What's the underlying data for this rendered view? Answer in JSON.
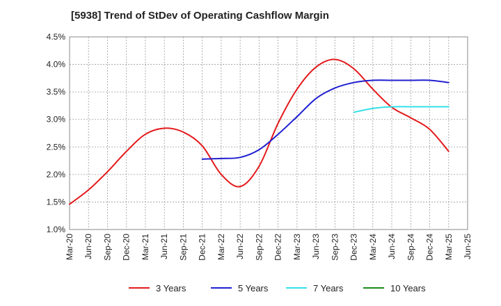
{
  "chart_data": {
    "type": "line",
    "title": "[5938]  Trend of StDev of Operating Cashflow Margin",
    "xlabel": "",
    "ylabel": "",
    "x_ticks": [
      "Mar-20",
      "Jun-20",
      "Sep-20",
      "Dec-20",
      "Mar-21",
      "Jun-21",
      "Sep-21",
      "Dec-21",
      "Mar-22",
      "Jun-22",
      "Sep-22",
      "Dec-22",
      "Mar-23",
      "Jun-23",
      "Sep-23",
      "Dec-23",
      "Mar-24",
      "Jun-24",
      "Sep-24",
      "Dec-24",
      "Mar-25",
      "Jun-25"
    ],
    "y_ticks": [
      "1.0%",
      "1.5%",
      "2.0%",
      "2.5%",
      "3.0%",
      "3.5%",
      "4.0%",
      "4.5%"
    ],
    "ylim": [
      1.0,
      4.5
    ],
    "y_unit": "%",
    "grid": true,
    "legend_position": "bottom",
    "series": [
      {
        "name": "3 Years",
        "color": "#e41a1c",
        "points": [
          [
            "Mar-20",
            1.46
          ],
          [
            "Jun-20",
            1.72
          ],
          [
            "Sep-20",
            2.05
          ],
          [
            "Dec-20",
            2.42
          ],
          [
            "Mar-21",
            2.73
          ],
          [
            "Jun-21",
            2.84
          ],
          [
            "Sep-21",
            2.77
          ],
          [
            "Dec-21",
            2.52
          ],
          [
            "Mar-22",
            2.0
          ],
          [
            "Jun-22",
            1.78
          ],
          [
            "Sep-22",
            2.15
          ],
          [
            "Dec-22",
            2.93
          ],
          [
            "Mar-23",
            3.55
          ],
          [
            "Jun-23",
            3.95
          ],
          [
            "Sep-23",
            4.09
          ],
          [
            "Dec-23",
            3.92
          ],
          [
            "Mar-24",
            3.55
          ],
          [
            "Jun-24",
            3.22
          ],
          [
            "Sep-24",
            3.03
          ],
          [
            "Dec-24",
            2.82
          ],
          [
            "Mar-25",
            2.42
          ]
        ]
      },
      {
        "name": "5 Years",
        "color": "#1f1fd0",
        "points": [
          [
            "Dec-21",
            2.28
          ],
          [
            "Mar-22",
            2.29
          ],
          [
            "Jun-22",
            2.31
          ],
          [
            "Sep-22",
            2.45
          ],
          [
            "Dec-22",
            2.73
          ],
          [
            "Mar-23",
            3.05
          ],
          [
            "Jun-23",
            3.38
          ],
          [
            "Sep-23",
            3.57
          ],
          [
            "Dec-23",
            3.67
          ],
          [
            "Mar-24",
            3.71
          ],
          [
            "Jun-24",
            3.71
          ],
          [
            "Sep-24",
            3.71
          ],
          [
            "Dec-24",
            3.71
          ],
          [
            "Mar-25",
            3.67
          ]
        ]
      },
      {
        "name": "7 Years",
        "color": "#33e0e8",
        "points": [
          [
            "Dec-23",
            3.13
          ],
          [
            "Mar-24",
            3.2
          ],
          [
            "Jun-24",
            3.23
          ],
          [
            "Sep-24",
            3.23
          ],
          [
            "Dec-24",
            3.23
          ],
          [
            "Mar-25",
            3.23
          ]
        ]
      },
      {
        "name": "10 Years",
        "color": "#1a8a1a",
        "points": []
      }
    ]
  }
}
